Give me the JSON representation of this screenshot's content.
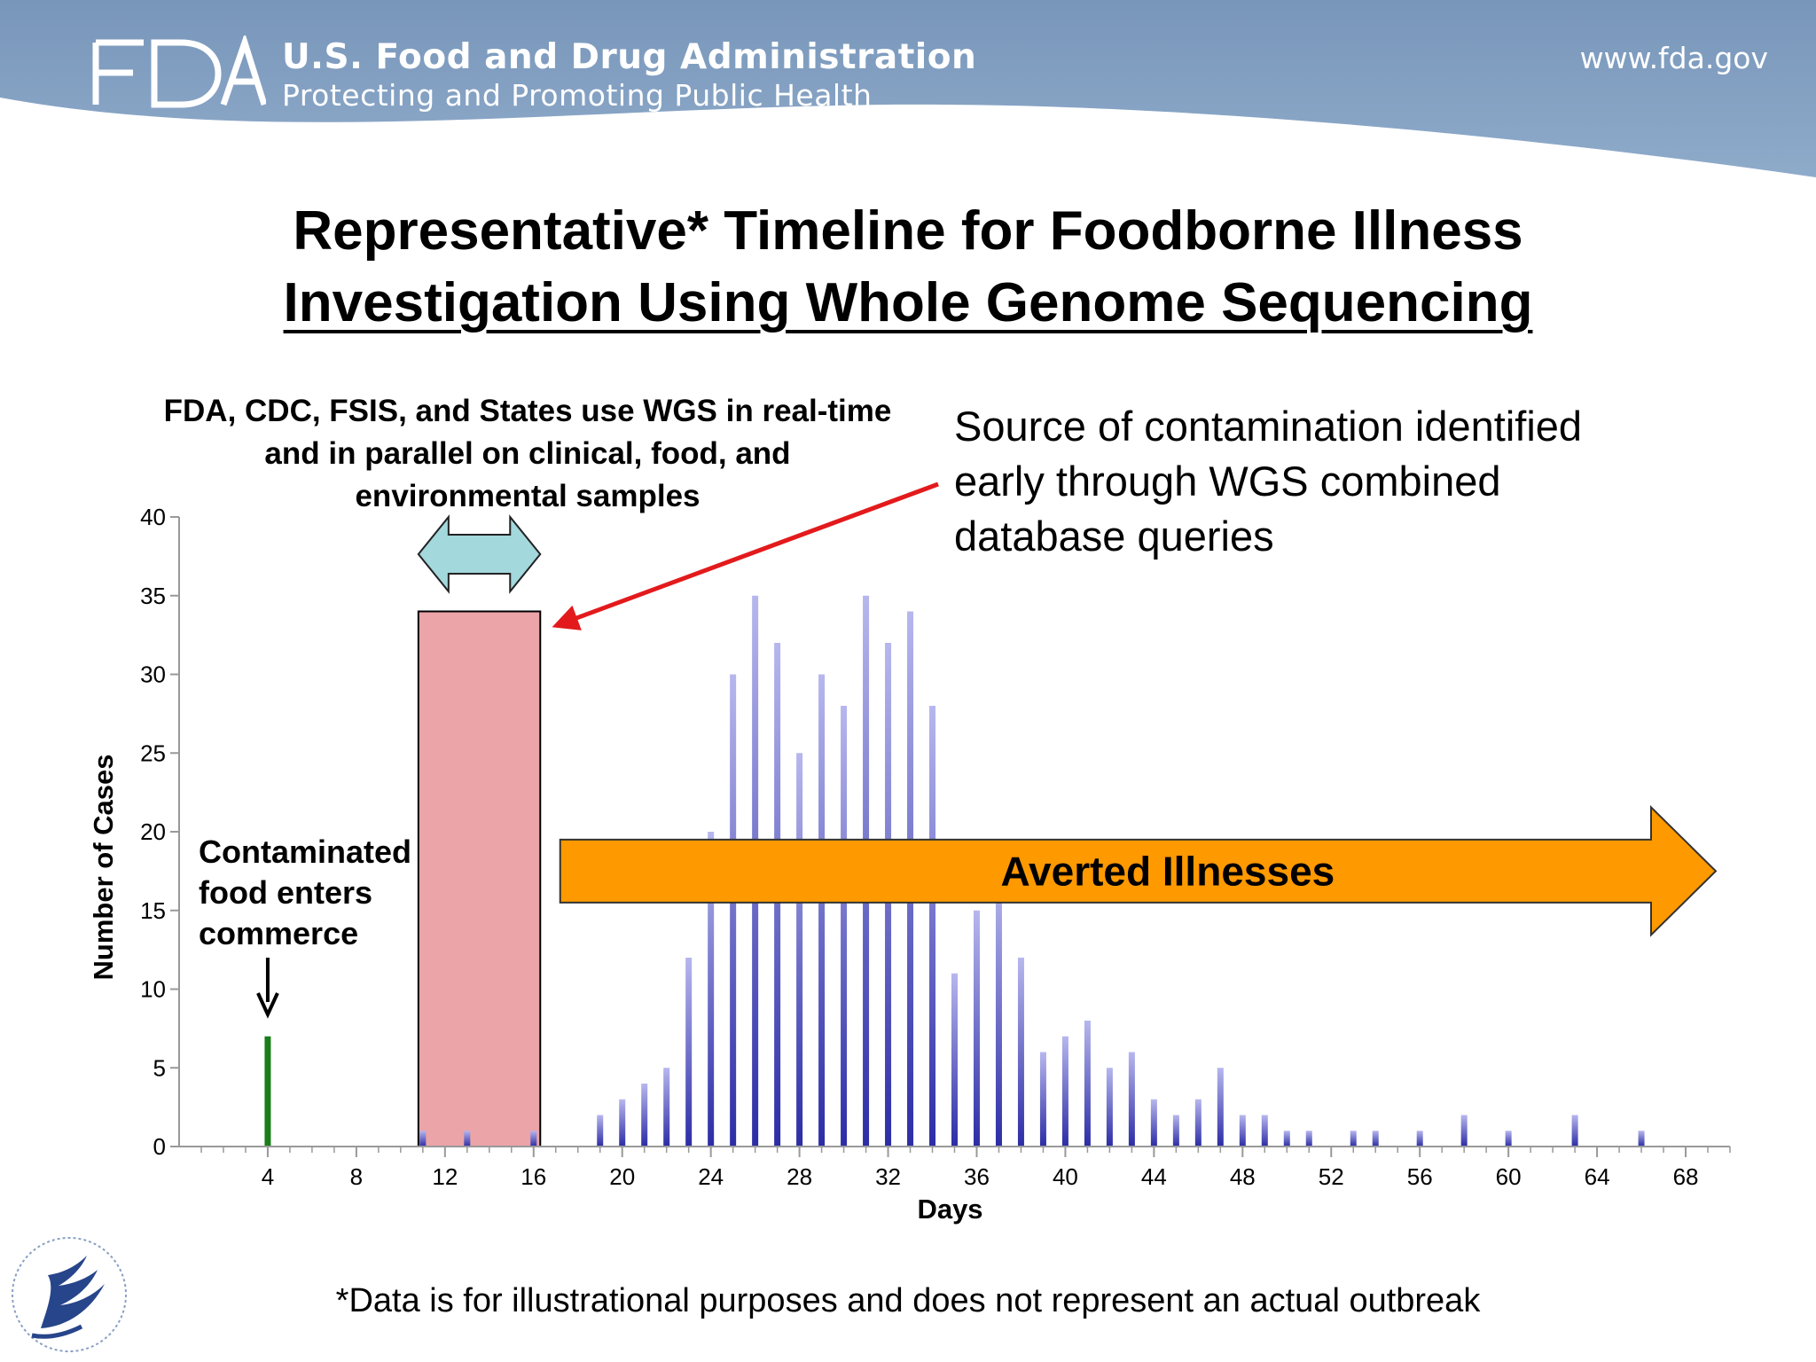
{
  "header": {
    "agency_name": "U.S. Food and Drug Administration",
    "tagline": "Protecting and Promoting Public Health",
    "url": "www.fda.gov",
    "logo_text": "FDA",
    "band_color": "#7f9fc2"
  },
  "title": {
    "line1": "Representative* Timeline for Foodborne Illness",
    "line2": "Investigation Using Whole Genome Sequencing"
  },
  "annotations": {
    "agencies_note": "FDA, CDC, FSIS, and States use WGS in real-time and in parallel on clinical, food, and environmental samples",
    "source_note": "Source of contamination identified early through WGS combined database queries",
    "commerce_note": [
      "Contaminated",
      "food enters",
      "commerce"
    ],
    "averted_label": "Averted Illnesses"
  },
  "footnote": "*Data is for illustrational purposes and does not represent an actual outbreak",
  "seal_name": "HHS seal",
  "chart_data": {
    "type": "bar",
    "xlabel": "Days",
    "ylabel": "Number of Cases",
    "xlim": [
      0,
      70
    ],
    "ylim": [
      0,
      40
    ],
    "xticks": [
      4,
      8,
      12,
      16,
      20,
      24,
      28,
      32,
      36,
      40,
      44,
      48,
      52,
      56,
      60,
      64,
      68
    ],
    "yticks": [
      0,
      5,
      10,
      15,
      20,
      25,
      30,
      35,
      40
    ],
    "grid": false,
    "series": [
      {
        "color": "#7575d6",
        "x": [
          11,
          13,
          16,
          19,
          20,
          21,
          22,
          23,
          24,
          25,
          26,
          27,
          28,
          29,
          30,
          31,
          32,
          33,
          34,
          35,
          36,
          37,
          38,
          39,
          40,
          41,
          42,
          43,
          44,
          45,
          46,
          47,
          48,
          49,
          50,
          51,
          53,
          54,
          56,
          58,
          60,
          63,
          66
        ],
        "values": [
          1,
          1,
          1,
          2,
          3,
          4,
          5,
          12,
          20,
          30,
          35,
          32,
          25,
          30,
          28,
          35,
          32,
          34,
          28,
          11,
          15,
          17,
          12,
          6,
          7,
          8,
          5,
          6,
          3,
          2,
          3,
          5,
          2,
          2,
          1,
          1,
          1,
          1,
          1,
          2,
          1,
          2,
          1
        ]
      },
      {
        "color": "#1a7d1a",
        "x": [
          4
        ],
        "values": [
          7
        ]
      }
    ],
    "investigation_window": {
      "x_start": 10.8,
      "x_end": 16.3,
      "level": 34,
      "color": "#eba4a8"
    },
    "wgs_span_arrow": {
      "x_start": 10.8,
      "x_end": 16.3,
      "color": "#a3d8dd"
    },
    "averted_arrow": {
      "x_start": 17.2,
      "x_end": 70,
      "level_low": 15.5,
      "level_high": 19.5,
      "color": "#ff9900"
    }
  }
}
